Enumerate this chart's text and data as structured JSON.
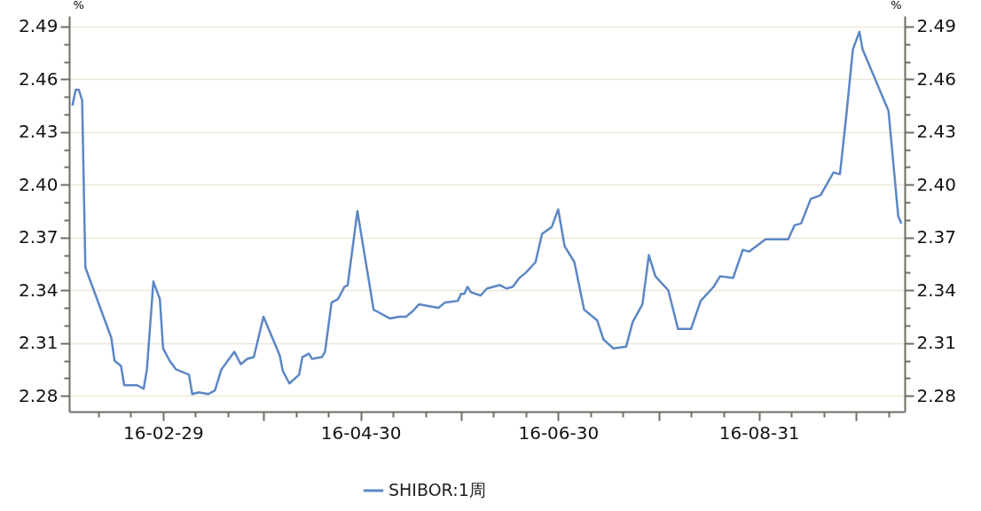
{
  "chart_data": {
    "type": "line",
    "ylabel": "%",
    "y2label": "%",
    "x": [
      "--02-01",
      "--02-02",
      "--02-03",
      "--02-04",
      "--02-05",
      "--02-13",
      "--02-14",
      "--02-16",
      "--02-17",
      "--02-21",
      "--02-23",
      "--02-24",
      "--02-26",
      "--02-28",
      "--02-29",
      "--03-02",
      "--03-04",
      "--03-08",
      "--03-09",
      "--03-11",
      "--03-14",
      "--03-16",
      "--03-18",
      "--03-22",
      "--03-24",
      "--03-26",
      "--03-28",
      "--03-31",
      "--04-05",
      "--04-06",
      "--04-08",
      "--04-11",
      "--04-12",
      "--04-14",
      "--04-15",
      "--04-18",
      "--04-19",
      "--04-21",
      "--04-23",
      "--04-25",
      "--04-26",
      "--04-29",
      "--05-04",
      "--05-05",
      "--05-09",
      "--05-12",
      "--05-14",
      "--05-16",
      "--05-18",
      "--05-24",
      "--05-26",
      "--05-30",
      "--05-31",
      "--06-01",
      "--06-02",
      "--06-03",
      "--06-06",
      "--06-08",
      "--06-12",
      "--06-14",
      "--06-16",
      "--06-18",
      "--06-20",
      "--06-23",
      "--06-25",
      "--06-28",
      "--06-30",
      "--07-02",
      "--07-05",
      "--07-08",
      "--07-12",
      "--07-14",
      "--07-17",
      "--07-21",
      "--07-23",
      "--07-26",
      "--07-28",
      "--07-30",
      "--08-03",
      "--08-06",
      "--08-10",
      "--08-13",
      "--08-17",
      "--08-19",
      "--08-23",
      "--08-26",
      "--08-28",
      "--09-02",
      "--09-09",
      "--09-11",
      "--09-13",
      "--09-16",
      "--09-19",
      "--09-23",
      "--09-25",
      "--09-27",
      "--09-29",
      "--10-01",
      "--10-02",
      "--10-10",
      "--10-13",
      "--10-14"
    ],
    "series": [
      {
        "name": "SHIBOR:1周",
        "color": "#5b87c5",
        "values": [
          2.445,
          2.454,
          2.454,
          2.448,
          2.353,
          2.313,
          2.3,
          2.297,
          2.286,
          2.286,
          2.284,
          2.295,
          2.345,
          2.335,
          2.307,
          2.3,
          2.295,
          2.292,
          2.281,
          2.282,
          2.281,
          2.283,
          2.295,
          2.305,
          2.298,
          2.301,
          2.302,
          2.325,
          2.303,
          2.294,
          2.287,
          2.292,
          2.302,
          2.304,
          2.301,
          2.302,
          2.305,
          2.333,
          2.335,
          2.342,
          2.343,
          2.385,
          2.329,
          2.328,
          2.324,
          2.325,
          2.325,
          2.328,
          2.332,
          2.33,
          2.333,
          2.334,
          2.338,
          2.338,
          2.342,
          2.339,
          2.337,
          2.341,
          2.343,
          2.341,
          2.342,
          2.347,
          2.35,
          2.356,
          2.372,
          2.376,
          2.386,
          2.365,
          2.356,
          2.329,
          2.323,
          2.312,
          2.307,
          2.308,
          2.322,
          2.332,
          2.36,
          2.348,
          2.34,
          2.318,
          2.318,
          2.334,
          2.342,
          2.348,
          2.347,
          2.363,
          2.362,
          2.369,
          2.369,
          2.377,
          2.378,
          2.392,
          2.394,
          2.407,
          2.406,
          2.44,
          2.477,
          2.487,
          2.477,
          2.442,
          2.382,
          2.378
        ]
      }
    ],
    "xlim": [
      "--01-31",
      "--10-15"
    ],
    "xticks": [
      {
        "value": "--02-09",
        "label": null
      },
      {
        "value": "--02-19",
        "label": null
      },
      {
        "value": "--02-29",
        "label": "16-02-29"
      },
      {
        "value": "--03-10",
        "label": null
      },
      {
        "value": "--03-20",
        "label": null
      },
      {
        "value": "--03-31",
        "label": null
      },
      {
        "value": "--04-10",
        "label": null
      },
      {
        "value": "--04-20",
        "label": null
      },
      {
        "value": "--04-30",
        "label": "16-04-30"
      },
      {
        "value": "--05-10",
        "label": null
      },
      {
        "value": "--05-20",
        "label": null
      },
      {
        "value": "--05-31",
        "label": null
      },
      {
        "value": "--06-10",
        "label": null
      },
      {
        "value": "--06-20",
        "label": null
      },
      {
        "value": "--06-30",
        "label": "16-06-30"
      },
      {
        "value": "--07-10",
        "label": null
      },
      {
        "value": "--07-20",
        "label": null
      },
      {
        "value": "--07-31",
        "label": null
      },
      {
        "value": "--08-10",
        "label": null
      },
      {
        "value": "--08-20",
        "label": null
      },
      {
        "value": "--08-31",
        "label": "16-08-31"
      },
      {
        "value": "--09-10",
        "label": null
      },
      {
        "value": "--09-20",
        "label": null
      },
      {
        "value": "--09-30",
        "label": null
      },
      {
        "value": "--10-10",
        "label": null
      }
    ],
    "ylim": [
      2.271,
      2.496
    ],
    "yticks": [
      2.28,
      {
        "value": 2.29,
        "label": null
      },
      {
        "value": 2.3,
        "label": null
      },
      2.31,
      {
        "value": 2.32,
        "label": null
      },
      {
        "value": 2.33,
        "label": null
      },
      2.34,
      {
        "value": 2.35,
        "label": null
      },
      {
        "value": 2.36,
        "label": null
      },
      2.37,
      {
        "value": 2.38,
        "label": null
      },
      {
        "value": 2.39,
        "label": null
      },
      {
        "value": 2.4,
        "label": "2.40"
      },
      {
        "value": 2.41,
        "label": null
      },
      {
        "value": 2.42,
        "label": null
      },
      2.43,
      {
        "value": 2.44,
        "label": null
      },
      {
        "value": 2.45,
        "label": null
      },
      2.46,
      {
        "value": 2.47,
        "label": null
      },
      {
        "value": 2.48,
        "label": null
      },
      2.49
    ],
    "y2lim": [
      2.271,
      2.496
    ],
    "y2ticks": [
      2.28,
      {
        "value": 2.29,
        "label": null
      },
      {
        "value": 2.3,
        "label": null
      },
      2.31,
      {
        "value": 2.32,
        "label": null
      },
      {
        "value": 2.33,
        "label": null
      },
      2.34,
      {
        "value": 2.35,
        "label": null
      },
      {
        "value": 2.36,
        "label": null
      },
      2.37,
      {
        "value": 2.38,
        "label": null
      },
      {
        "value": 2.39,
        "label": null
      },
      {
        "value": 2.4,
        "label": "2.40"
      },
      {
        "value": 2.41,
        "label": null
      },
      {
        "value": 2.42,
        "label": null
      },
      2.43,
      {
        "value": 2.44,
        "label": null
      },
      {
        "value": 2.45,
        "label": null
      },
      2.46,
      {
        "value": 2.47,
        "label": null
      },
      {
        "value": 2.48,
        "label": null
      },
      2.49
    ],
    "grid": "y",
    "legend": "bottom",
    "marker": "none",
    "line_style": "solid"
  }
}
